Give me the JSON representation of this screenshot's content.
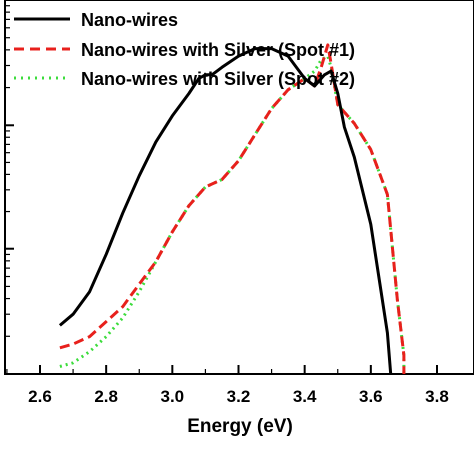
{
  "chart_data": {
    "type": "line",
    "title": "",
    "xlabel": "Energy (eV)",
    "ylabel": "",
    "xlim": [
      2.5,
      3.85
    ],
    "ylim": [
      0,
      1
    ],
    "y_scale": "log",
    "grid": false,
    "legend_position": "top-left",
    "x_ticks": [
      "2.6",
      "2.8",
      "3.0",
      "3.2",
      "3.4",
      "3.6",
      "3.8"
    ],
    "series": [
      {
        "name": "Nano-wires",
        "color": "#000000",
        "style": "solid",
        "x": [
          2.66,
          2.7,
          2.75,
          2.8,
          2.85,
          2.9,
          2.95,
          3.0,
          3.05,
          3.08,
          3.1,
          3.12,
          3.15,
          3.2,
          3.25,
          3.3,
          3.35,
          3.4,
          3.43,
          3.46,
          3.48,
          3.5,
          3.52,
          3.55,
          3.6,
          3.65,
          3.66
        ],
        "y": [
          0.13,
          0.16,
          0.22,
          0.32,
          0.43,
          0.53,
          0.62,
          0.69,
          0.75,
          0.79,
          0.8,
          0.8,
          0.82,
          0.85,
          0.87,
          0.87,
          0.85,
          0.79,
          0.77,
          0.8,
          0.81,
          0.75,
          0.66,
          0.58,
          0.4,
          0.11,
          0.0
        ]
      },
      {
        "name": "Nano-wires with Silver (Spot #1)",
        "color": "#e8201c",
        "style": "dashed",
        "x": [
          2.66,
          2.7,
          2.75,
          2.8,
          2.85,
          2.9,
          2.95,
          3.0,
          3.05,
          3.1,
          3.15,
          3.2,
          3.25,
          3.3,
          3.35,
          3.4,
          3.43,
          3.45,
          3.47,
          3.48,
          3.5,
          3.55,
          3.6,
          3.65,
          3.68,
          3.7,
          3.7
        ],
        "y": [
          0.07,
          0.08,
          0.1,
          0.14,
          0.18,
          0.24,
          0.3,
          0.38,
          0.45,
          0.5,
          0.52,
          0.57,
          0.64,
          0.71,
          0.76,
          0.79,
          0.77,
          0.82,
          0.88,
          0.83,
          0.72,
          0.67,
          0.6,
          0.48,
          0.2,
          0.05,
          0.0
        ]
      },
      {
        "name": "Nano-wires with Silver (Spot #2)",
        "color": "#3cdc3c",
        "style": "dotted",
        "x": [
          2.66,
          2.7,
          2.75,
          2.8,
          2.85,
          2.9,
          2.95,
          3.0,
          3.05,
          3.1,
          3.15,
          3.2,
          3.25,
          3.3,
          3.35,
          3.4,
          3.43,
          3.45,
          3.47,
          3.48,
          3.5,
          3.55,
          3.6,
          3.65,
          3.68,
          3.7,
          3.7
        ],
        "y": [
          0.02,
          0.03,
          0.06,
          0.1,
          0.15,
          0.22,
          0.3,
          0.38,
          0.45,
          0.5,
          0.52,
          0.57,
          0.64,
          0.71,
          0.76,
          0.79,
          0.81,
          0.84,
          0.85,
          0.82,
          0.72,
          0.67,
          0.6,
          0.48,
          0.2,
          0.05,
          0.0
        ]
      }
    ]
  }
}
